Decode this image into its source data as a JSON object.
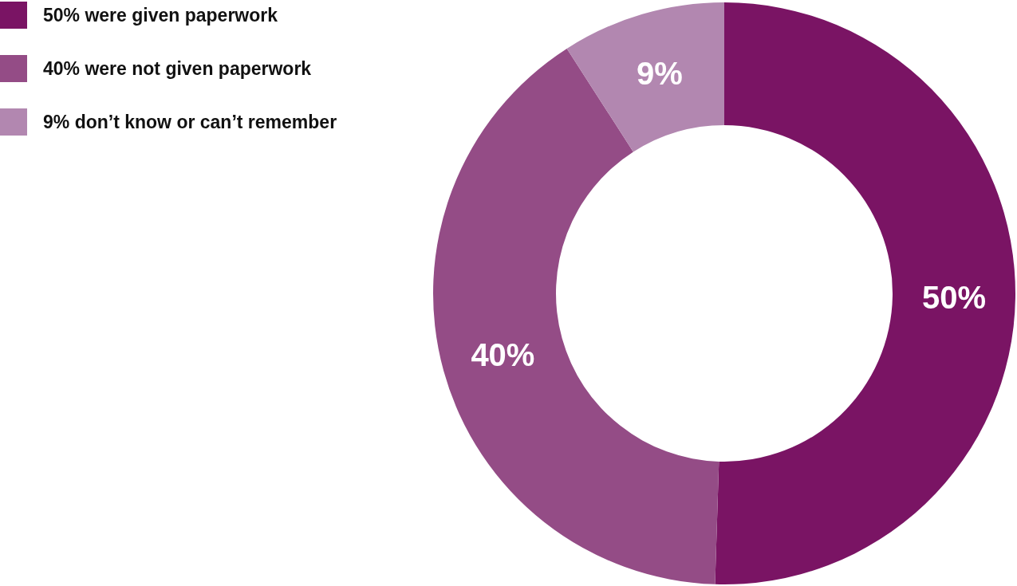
{
  "chart_data": {
    "type": "donut",
    "categories": [
      "50% were given paperwork",
      "40% were not given paperwork",
      "9% don’t know or can’t remember"
    ],
    "values": [
      50,
      40,
      9
    ],
    "colors": [
      "#7a1464",
      "#944c86",
      "#b287b0"
    ],
    "value_labels": [
      "50%",
      "40%",
      "9%"
    ],
    "legend": "top left"
  }
}
